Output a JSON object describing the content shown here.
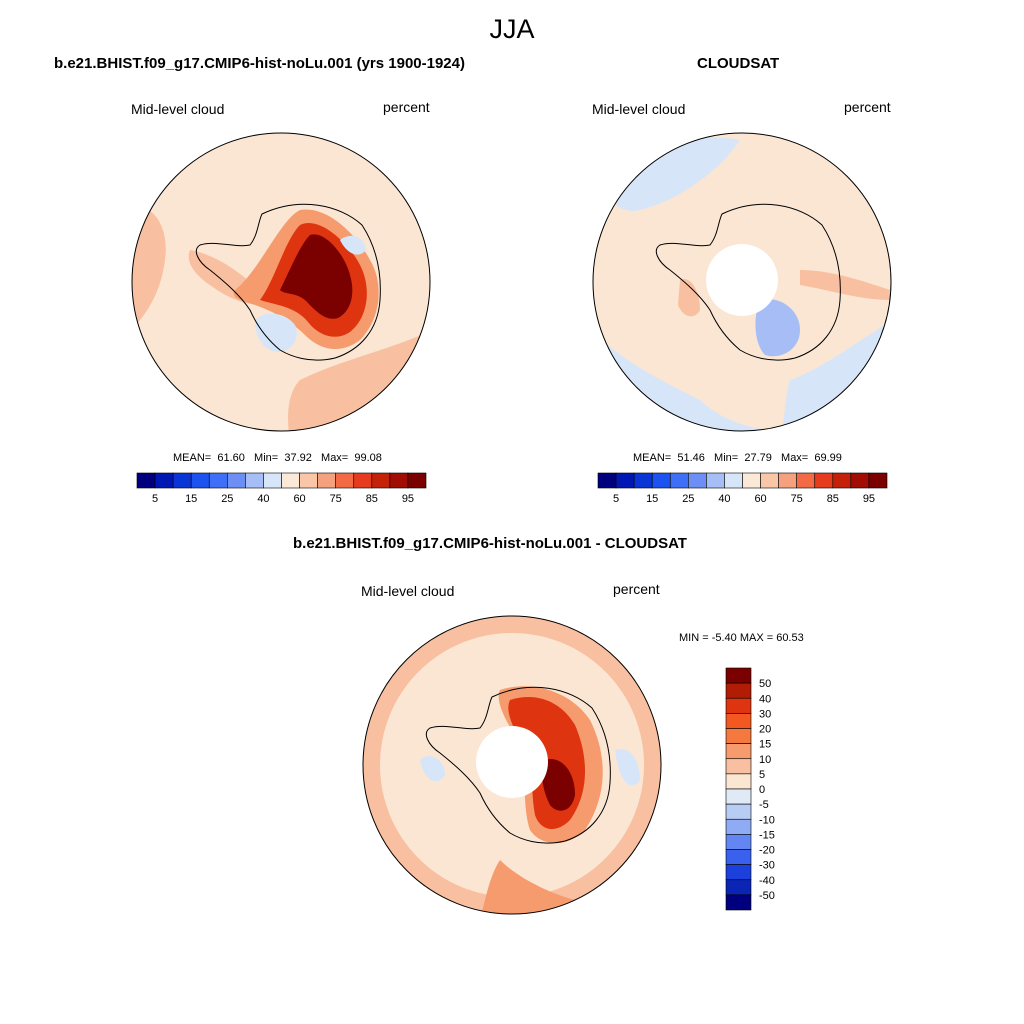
{
  "page_title": "JJA",
  "panels": [
    {
      "title": "b.e21.BHIST.f09_g17.CMIP6-hist-noLu.001 (yrs 1900-1924)",
      "variable": "Mid-level cloud",
      "units": "percent",
      "stats": {
        "mean_label": "MEAN=",
        "mean": "61.60",
        "min_label": "Min=",
        "min": "37.92",
        "max_label": "Max=",
        "max": "99.08"
      }
    },
    {
      "title": "CLOUDSAT",
      "variable": "Mid-level cloud",
      "units": "percent",
      "stats": {
        "mean_label": "MEAN=",
        "mean": "51.46",
        "min_label": "Min=",
        "min": "27.79",
        "max_label": "Max=",
        "max": "69.99"
      }
    },
    {
      "title": "b.e21.BHIST.f09_g17.CMIP6-hist-noLu.001 - CLOUDSAT",
      "variable": "Mid-level cloud",
      "units": "percent",
      "minmax_text": "MIN =  -5.40 MAX =  60.53"
    }
  ],
  "colorbar_abs": {
    "labels": [
      "5",
      "15",
      "25",
      "40",
      "60",
      "75",
      "85",
      "95"
    ],
    "colors": [
      "#00007f",
      "#0018b3",
      "#0a35d6",
      "#1c52f0",
      "#3f6ef7",
      "#6d8ff5",
      "#a6bef5",
      "#d6e6f8",
      "#fbe8d6",
      "#f9c6a8",
      "#f5a07f",
      "#f26b45",
      "#e63b1c",
      "#c42109",
      "#a10c04",
      "#7b0000"
    ]
  },
  "colorbar_diff": {
    "labels": [
      "50",
      "40",
      "30",
      "20",
      "15",
      "10",
      "5",
      "0",
      "-5",
      "-10",
      "-15",
      "-20",
      "-30",
      "-40",
      "-50"
    ],
    "colors": [
      "#7b0000",
      "#b01c04",
      "#de3510",
      "#f2581f",
      "#f5793e",
      "#f69b6d",
      "#f8c0a0",
      "#fbe6d3",
      "#e0eaf6",
      "#b7cdf4",
      "#8eabf3",
      "#6386f2",
      "#3a61ee",
      "#1b40dc",
      "#0a24b4",
      "#00007f"
    ]
  },
  "palette": {
    "bg_ocean_light": "#fbe6d3",
    "light_orange": "#f8c0a0",
    "mid_orange": "#f69b6d",
    "dark_red": "#7b0000",
    "light_blue": "#d6e6f8",
    "mid_blue": "#a6bef5"
  }
}
